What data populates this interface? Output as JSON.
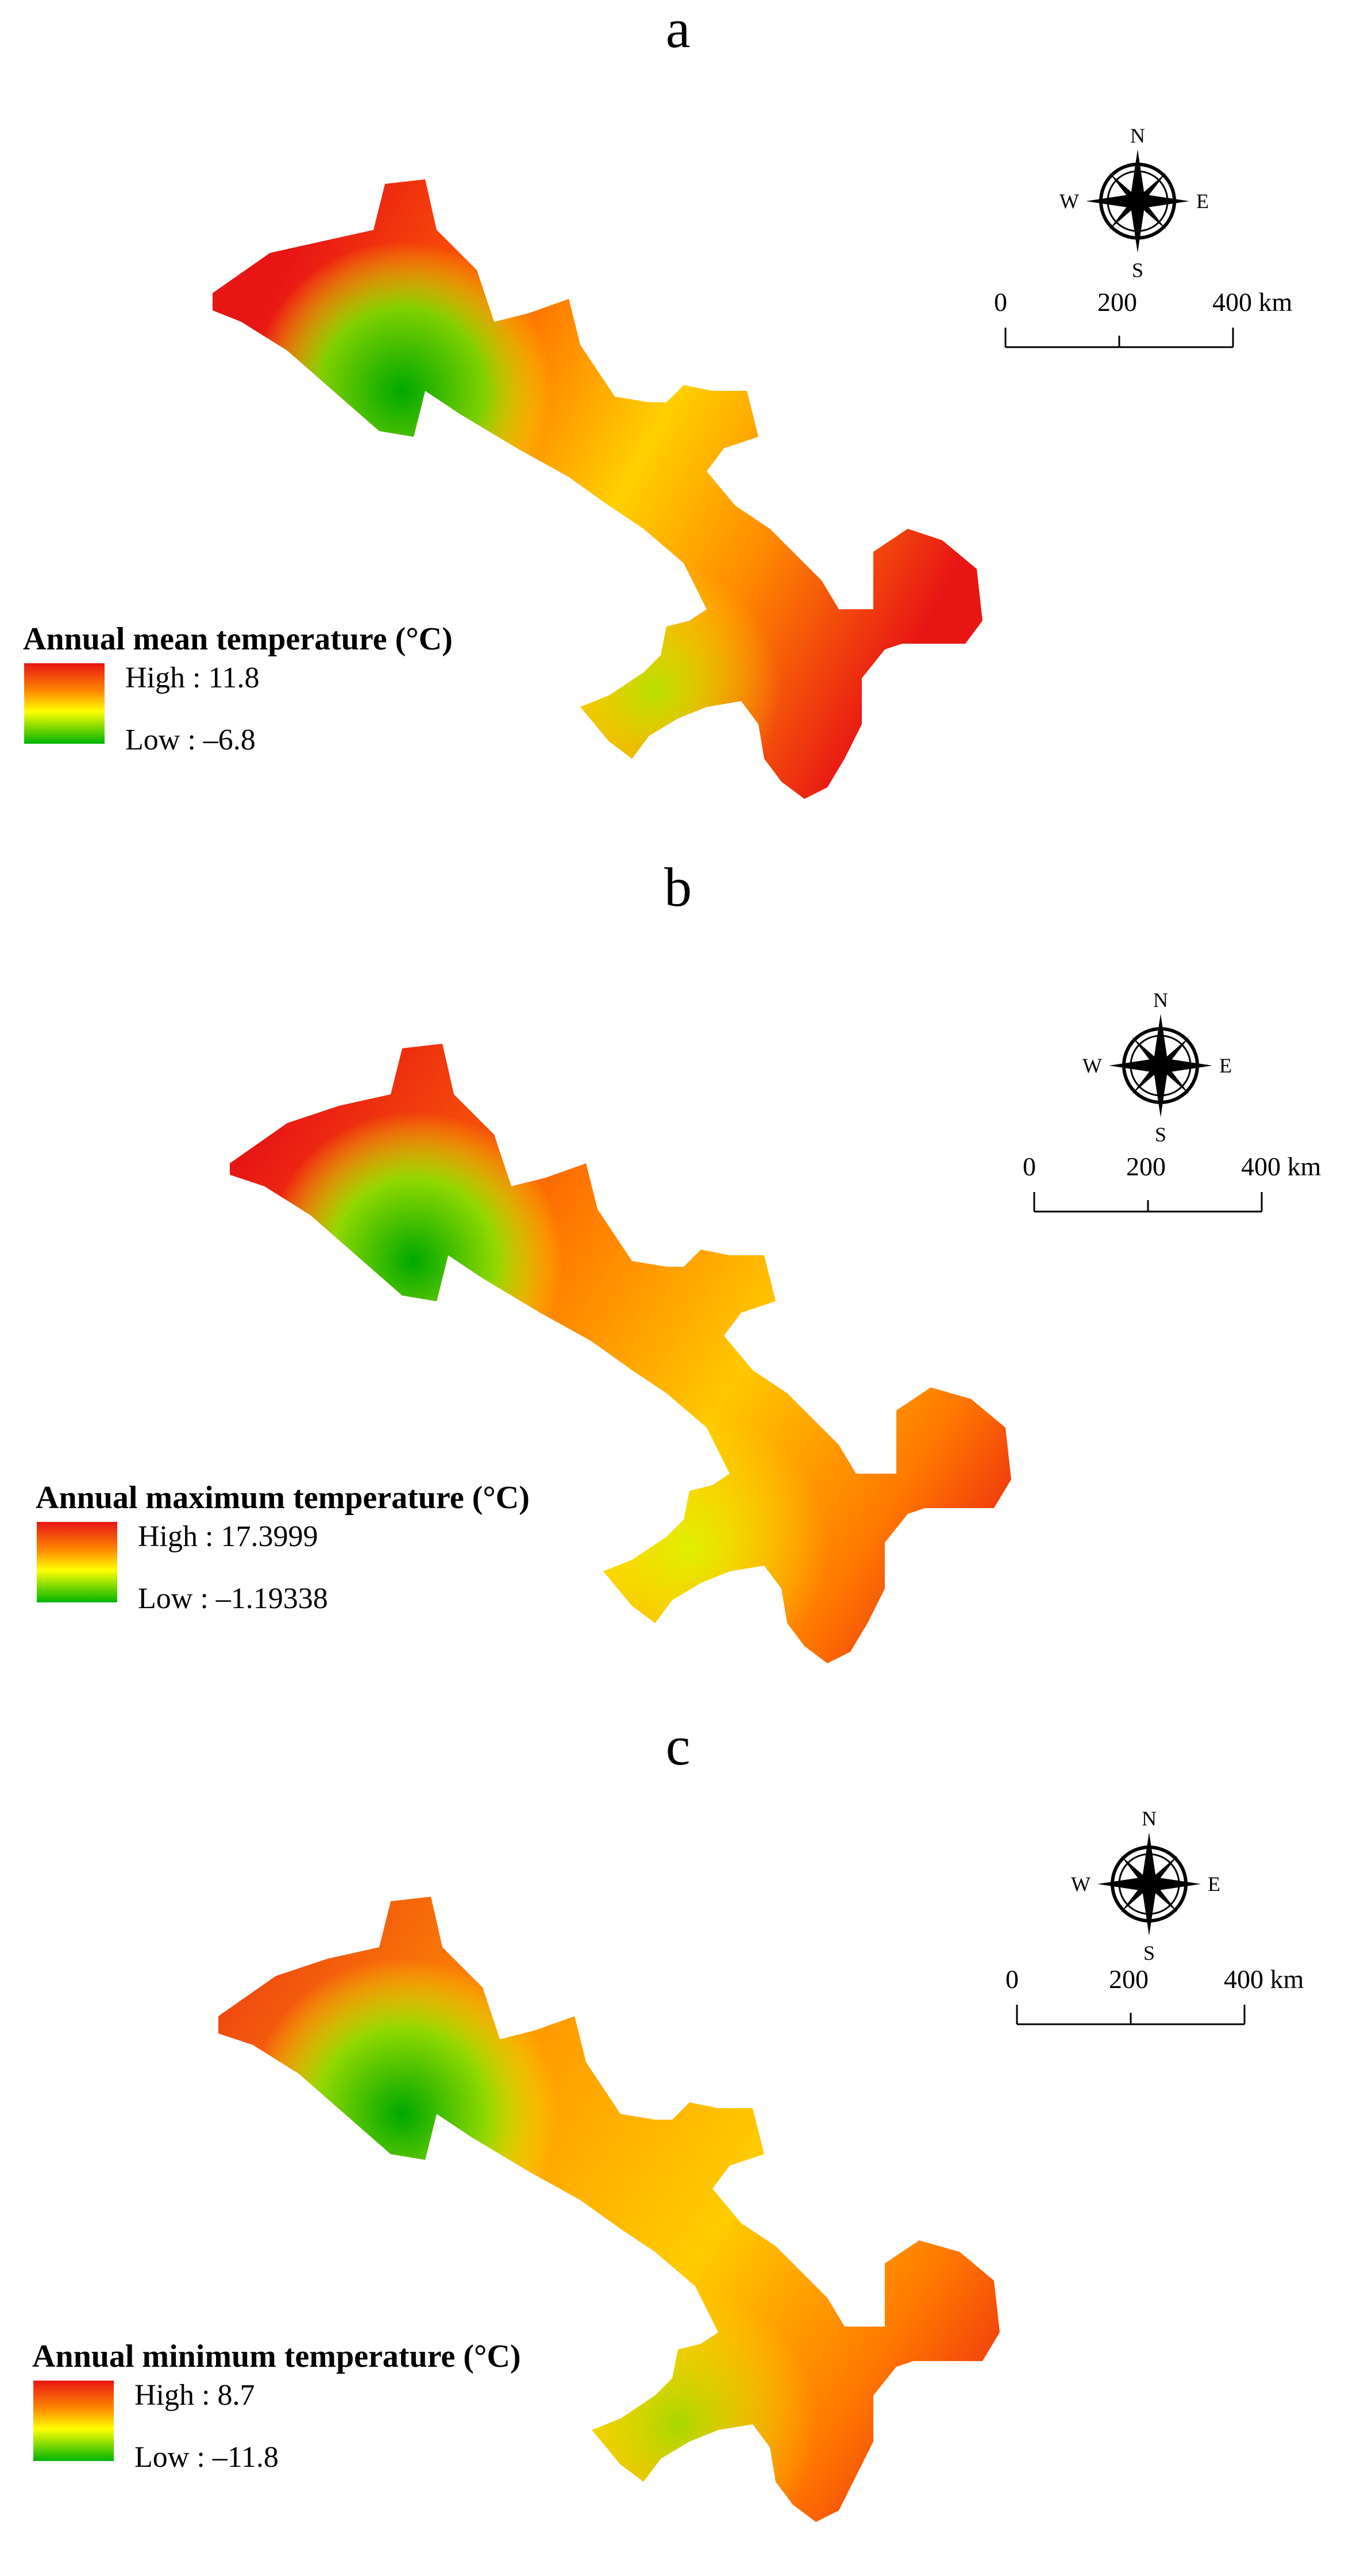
{
  "panels": [
    {
      "label": "a",
      "legend": {
        "title": "Annual mean temperature (°C)",
        "high": "High : 11.8",
        "low": "Low : –6.8"
      }
    },
    {
      "label": "b",
      "legend": {
        "title": "Annual maximum temperature (°C)",
        "high": "High : 17.3999",
        "low": "Low : –1.19338"
      }
    },
    {
      "label": "c",
      "legend": {
        "title": "Annual minimum temperature (°C)",
        "high": "High : 8.7",
        "low": "Low : –11.8"
      }
    }
  ],
  "north_arrow": {
    "n": "N",
    "s": "S",
    "e": "E",
    "w": "W"
  },
  "scale_bar": {
    "tick_0": "0",
    "tick_200": "200",
    "tick_400": "400 km"
  },
  "colors": {
    "high": "#e81515",
    "mid_high": "#ff8a00",
    "mid": "#ffff00",
    "low": "#00b400"
  }
}
